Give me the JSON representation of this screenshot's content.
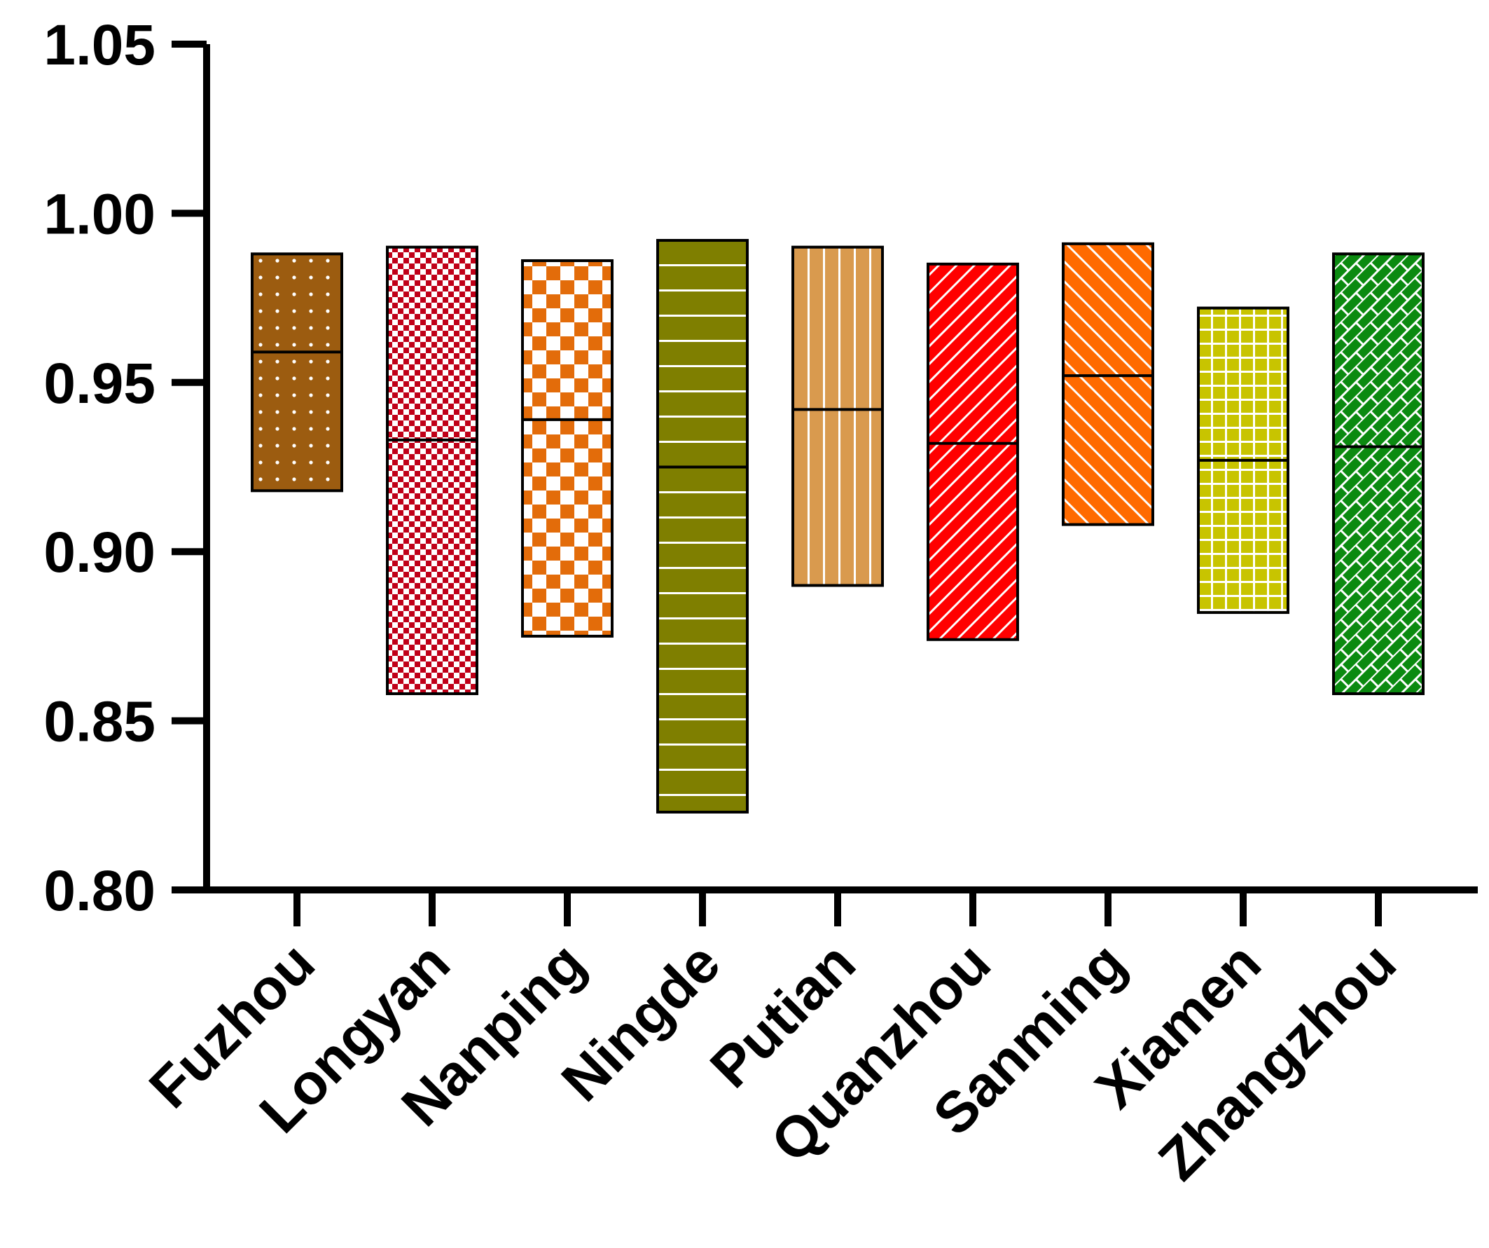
{
  "chart_data": {
    "type": "floating-bar",
    "title": "",
    "xlabel": "",
    "ylabel": "",
    "ylim": [
      0.8,
      1.05
    ],
    "yticks": [
      "0.80",
      "0.85",
      "0.90",
      "0.95",
      "1.00",
      "1.05"
    ],
    "categories": [
      "Fuzhou",
      "Longyan",
      "Nanping",
      "Ningde",
      "Putian",
      "Quanzhou",
      "Sanming",
      "Xiamen",
      "Zhangzhou"
    ],
    "series": [
      {
        "name": "Fuzhou",
        "min": 0.918,
        "max": 0.988,
        "mean": 0.959,
        "color": "#9C5C10",
        "pattern": "dots"
      },
      {
        "name": "Longyan",
        "min": 0.858,
        "max": 0.99,
        "mean": 0.933,
        "color": "#C00018",
        "pattern": "fine-checker"
      },
      {
        "name": "Nanping",
        "min": 0.875,
        "max": 0.986,
        "mean": 0.939,
        "color": "#E36C0A",
        "pattern": "checker"
      },
      {
        "name": "Ningde",
        "min": 0.823,
        "max": 0.992,
        "mean": 0.925,
        "color": "#7F7F00",
        "pattern": "horizontal-lines"
      },
      {
        "name": "Putian",
        "min": 0.89,
        "max": 0.99,
        "mean": 0.942,
        "color": "#D99A4E",
        "pattern": "vertical-lines"
      },
      {
        "name": "Quanzhou",
        "min": 0.874,
        "max": 0.985,
        "mean": 0.932,
        "color": "#FF0000",
        "pattern": "diagonal-up"
      },
      {
        "name": "Sanming",
        "min": 0.908,
        "max": 0.991,
        "mean": 0.952,
        "color": "#FF6A00",
        "pattern": "diagonal-down"
      },
      {
        "name": "Xiamen",
        "min": 0.882,
        "max": 0.972,
        "mean": 0.927,
        "color": "#C8C400",
        "pattern": "grid"
      },
      {
        "name": "Zhangzhou",
        "min": 0.858,
        "max": 0.988,
        "mean": 0.931,
        "color": "#0B8A10",
        "pattern": "bricks"
      }
    ]
  }
}
